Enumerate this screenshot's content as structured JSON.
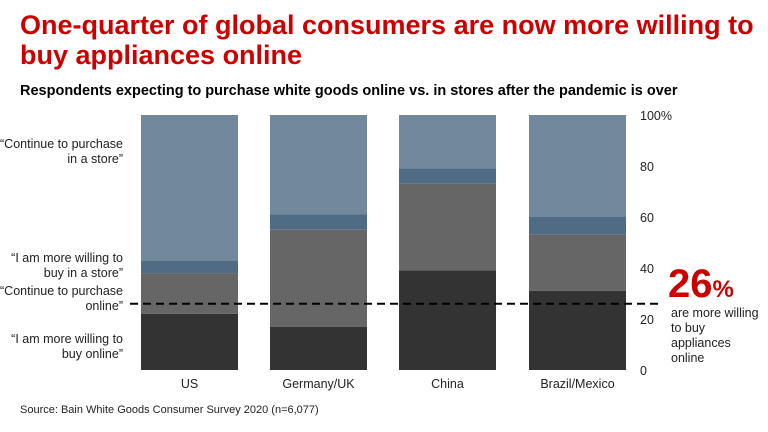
{
  "title": "One-quarter of global consumers are now more willing to buy appliances online",
  "subtitle": "Respondents expecting to purchase white goods online vs. in stores after the pandemic is over",
  "source": "Source: Bain White Goods Consumer Survey 2020 (n=6,077)",
  "callout": {
    "value": "26",
    "unit": "%",
    "text": "are more willing to buy appliances online"
  },
  "chart_data": {
    "type": "bar",
    "stacked": true,
    "categories": [
      "US",
      "Germany/UK",
      "China",
      "Brazil/Mexico"
    ],
    "series": [
      {
        "name": "“I am more willing to buy online”",
        "color": "#333333",
        "values": [
          22,
          17,
          39,
          31
        ]
      },
      {
        "name": "“Continue to purchase online”",
        "color": "#666666",
        "values": [
          16,
          38,
          34,
          22
        ]
      },
      {
        "name": "“I am more willing to buy in a store”",
        "color": "#506c85",
        "values": [
          5,
          6,
          6,
          7
        ]
      },
      {
        "name": "“Continue to purchase in a store”",
        "color": "#72899d",
        "values": [
          57,
          39,
          21,
          40
        ]
      }
    ],
    "ylim": [
      0,
      100
    ],
    "yticks": [
      "0",
      "20",
      "40",
      "60",
      "80",
      "100%"
    ],
    "reference_line": {
      "value": 26,
      "style": "dashed"
    },
    "legend_placement": "left",
    "grid": false
  }
}
